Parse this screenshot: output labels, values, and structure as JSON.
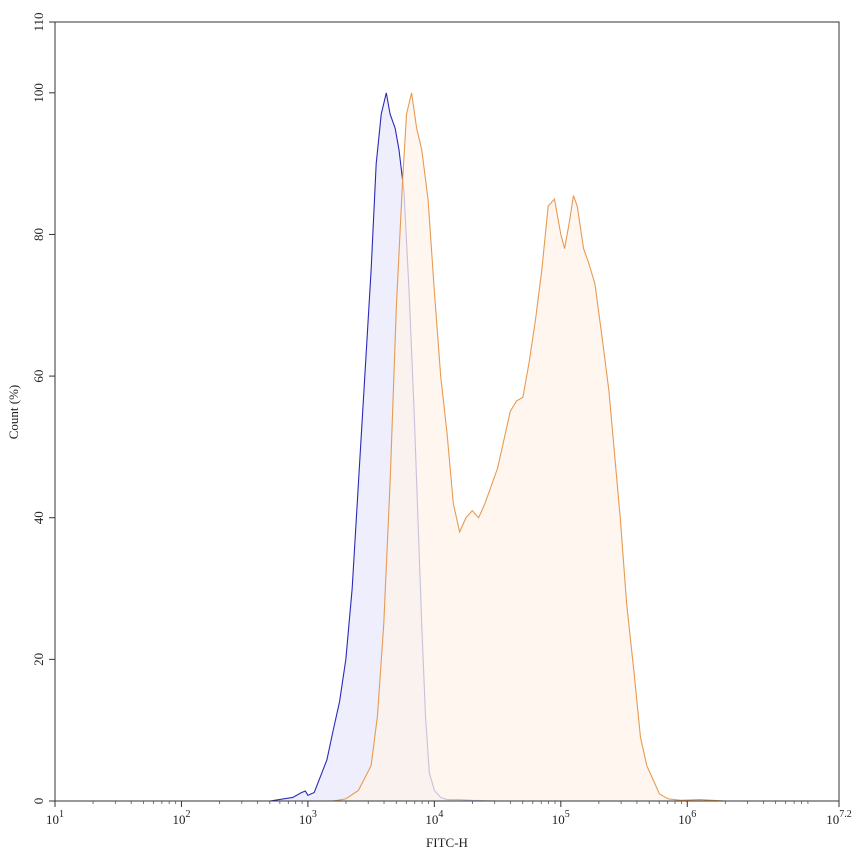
{
  "chart_data": {
    "type": "area",
    "xlabel": "FITC-H",
    "ylabel": "Count (%)",
    "x_scale": "log10",
    "xlim": [
      1,
      7.2
    ],
    "ylim": [
      0,
      110
    ],
    "x_ticks": [
      {
        "value": 1,
        "base": "10",
        "exp": "1"
      },
      {
        "value": 2,
        "base": "10",
        "exp": "2"
      },
      {
        "value": 3,
        "base": "10",
        "exp": "3"
      },
      {
        "value": 4,
        "base": "10",
        "exp": "4"
      },
      {
        "value": 5,
        "base": "10",
        "exp": "5"
      },
      {
        "value": 6,
        "base": "10",
        "exp": "6"
      },
      {
        "value": 7.2,
        "base": "10",
        "exp": "7.2"
      }
    ],
    "y_ticks": [
      {
        "value": 0,
        "label": "0"
      },
      {
        "value": 20,
        "label": "20"
      },
      {
        "value": 40,
        "label": "40"
      },
      {
        "value": 60,
        "label": "60"
      },
      {
        "value": 80,
        "label": "80"
      },
      {
        "value": 100,
        "label": "100"
      },
      {
        "value": 110,
        "label": "110"
      }
    ],
    "grid": false,
    "series": [
      {
        "color": "#2a2ab8",
        "fill": "#e8e8fb",
        "points": [
          [
            2.4,
            0
          ],
          [
            2.7,
            0
          ],
          [
            2.88,
            0.5
          ],
          [
            2.95,
            1.2
          ],
          [
            2.98,
            1.4
          ],
          [
            3.0,
            0.8
          ],
          [
            3.05,
            1.2
          ],
          [
            3.1,
            3.5
          ],
          [
            3.15,
            5.8
          ],
          [
            3.2,
            10
          ],
          [
            3.25,
            14
          ],
          [
            3.3,
            20
          ],
          [
            3.35,
            30
          ],
          [
            3.4,
            45
          ],
          [
            3.45,
            60
          ],
          [
            3.5,
            75
          ],
          [
            3.54,
            90
          ],
          [
            3.58,
            97
          ],
          [
            3.62,
            100
          ],
          [
            3.65,
            97
          ],
          [
            3.69,
            95
          ],
          [
            3.72,
            92
          ],
          [
            3.76,
            86
          ],
          [
            3.8,
            72
          ],
          [
            3.84,
            55
          ],
          [
            3.87,
            40
          ],
          [
            3.9,
            25
          ],
          [
            3.93,
            12
          ],
          [
            3.96,
            4
          ],
          [
            4.0,
            1.5
          ],
          [
            4.05,
            0.5
          ],
          [
            4.1,
            0.2
          ],
          [
            4.2,
            0.2
          ],
          [
            4.3,
            0.1
          ],
          [
            4.5,
            0
          ],
          [
            5.0,
            0
          ],
          [
            6.0,
            0
          ],
          [
            6.3,
            0
          ]
        ]
      },
      {
        "color": "#e89a52",
        "fill": "#fdf3ea",
        "points": [
          [
            3.2,
            0
          ],
          [
            3.3,
            0.3
          ],
          [
            3.4,
            1.5
          ],
          [
            3.5,
            5
          ],
          [
            3.55,
            12
          ],
          [
            3.6,
            25
          ],
          [
            3.65,
            45
          ],
          [
            3.7,
            70
          ],
          [
            3.75,
            88
          ],
          [
            3.78,
            97
          ],
          [
            3.82,
            100
          ],
          [
            3.86,
            95
          ],
          [
            3.9,
            92
          ],
          [
            3.95,
            85
          ],
          [
            4.0,
            72
          ],
          [
            4.05,
            60
          ],
          [
            4.1,
            52
          ],
          [
            4.15,
            42
          ],
          [
            4.2,
            38
          ],
          [
            4.25,
            40
          ],
          [
            4.3,
            41
          ],
          [
            4.35,
            40
          ],
          [
            4.4,
            42
          ],
          [
            4.5,
            47
          ],
          [
            4.6,
            55
          ],
          [
            4.65,
            56.5
          ],
          [
            4.7,
            57
          ],
          [
            4.75,
            62
          ],
          [
            4.8,
            68
          ],
          [
            4.85,
            75
          ],
          [
            4.9,
            84
          ],
          [
            4.95,
            85
          ],
          [
            5.0,
            80
          ],
          [
            5.03,
            78
          ],
          [
            5.07,
            82
          ],
          [
            5.1,
            85.5
          ],
          [
            5.13,
            84
          ],
          [
            5.18,
            78
          ],
          [
            5.22,
            76
          ],
          [
            5.27,
            73
          ],
          [
            5.33,
            65
          ],
          [
            5.38,
            58
          ],
          [
            5.42,
            50
          ],
          [
            5.47,
            40
          ],
          [
            5.52,
            28
          ],
          [
            5.58,
            18
          ],
          [
            5.63,
            9
          ],
          [
            5.68,
            5
          ],
          [
            5.73,
            3
          ],
          [
            5.78,
            1
          ],
          [
            5.85,
            0.3
          ],
          [
            5.95,
            0.1
          ],
          [
            6.1,
            0.2
          ],
          [
            6.2,
            0.1
          ],
          [
            6.3,
            0
          ],
          [
            7.0,
            0
          ]
        ]
      }
    ]
  }
}
